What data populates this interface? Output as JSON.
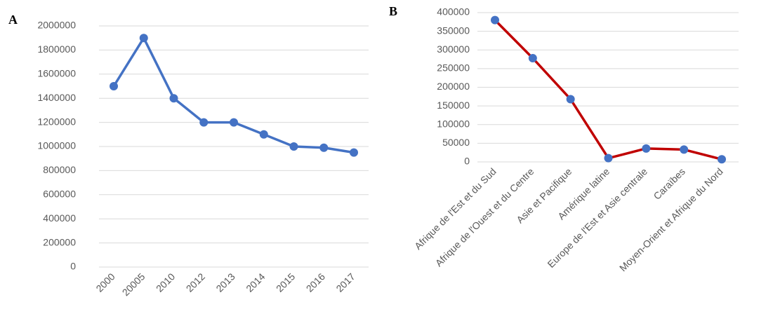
{
  "chart_data": [
    {
      "type": "line",
      "label": "A",
      "categories": [
        "2000",
        "20005",
        "2010",
        "2012",
        "2013",
        "2014",
        "2015",
        "2016",
        "2017"
      ],
      "series": [
        {
          "color": "#4472c4",
          "marker_color": "#4472c4",
          "values": [
            1500000,
            1900000,
            1400000,
            1200000,
            1200000,
            1100000,
            1000000,
            990000,
            950000
          ]
        }
      ],
      "ylim": [
        0,
        2000000
      ],
      "yticks": [
        0,
        200000,
        400000,
        600000,
        800000,
        1000000,
        1200000,
        1400000,
        1600000,
        1800000,
        2000000
      ],
      "grid": true
    },
    {
      "type": "line",
      "label": "B",
      "categories": [
        "Afrique de l'Est et du Sud",
        "Afrique de l'Ouest et du Centre",
        "Asie et Pacifique",
        "Amérique  latine",
        "Europe de l'Est et Asie centrale",
        "Caraïbes",
        "Moyen-Orient et Afrique du Nord"
      ],
      "series": [
        {
          "color": "#c00000",
          "marker_color": "#4472c4",
          "values": [
            380000,
            278000,
            168000,
            10000,
            36000,
            33000,
            7000
          ]
        }
      ],
      "ylim": [
        0,
        400000
      ],
      "yticks": [
        0,
        50000,
        100000,
        150000,
        200000,
        250000,
        300000,
        350000,
        400000
      ],
      "grid": true
    }
  ]
}
